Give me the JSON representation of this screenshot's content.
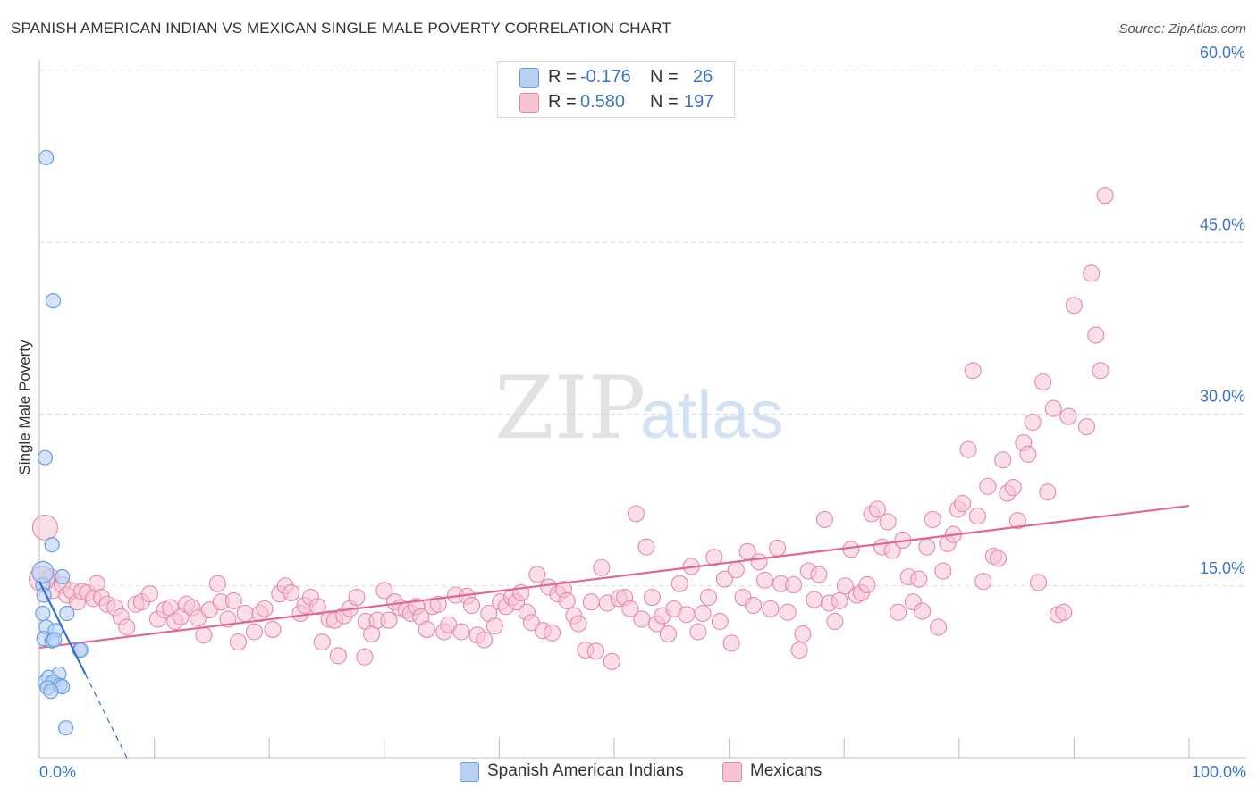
{
  "title": "SPANISH AMERICAN INDIAN VS MEXICAN SINGLE MALE POVERTY CORRELATION CHART",
  "source": "Source: ZipAtlas.com",
  "colors": {
    "blue_fill": "#b7d1f3",
    "blue_stroke": "#6a9ee0",
    "blue_line": "#2f6fd0",
    "pink_fill": "#f6c4d3",
    "pink_stroke": "#e58aa8",
    "pink_line": "#e3668f",
    "axis_text": "#3d74c6",
    "grid": "#dcdcdc"
  },
  "legend_top": {
    "rows": [
      {
        "r_label": "R =",
        "r_value": "-0.176",
        "n_label": "N =",
        "n_value": "26"
      },
      {
        "r_label": "R =",
        "r_value": "0.580",
        "n_label": "N =",
        "n_value": "197"
      }
    ]
  },
  "legend_bottom": {
    "items": [
      {
        "label": "Spanish American Indians"
      },
      {
        "label": "Mexicans"
      }
    ]
  },
  "chart_data": {
    "type": "scatter",
    "title": "SPANISH AMERICAN INDIAN VS MEXICAN SINGLE MALE POVERTY CORRELATION CHART",
    "xlabel": "",
    "ylabel": "Single Male Poverty",
    "xlim": [
      0,
      100
    ],
    "ylim": [
      0,
      60
    ],
    "x_tick_labels": [
      "0.0%",
      "100.0%"
    ],
    "y_ticks": [
      15,
      30,
      45,
      60
    ],
    "y_tick_labels": [
      "15.0%",
      "30.0%",
      "45.0%",
      "60.0%"
    ],
    "grid": "horizontal dashed",
    "watermark": {
      "zip": "ZIP",
      "atlas": "atlas"
    },
    "series": [
      {
        "name": "Spanish American Indians",
        "r": -0.176,
        "n": 26,
        "trend": {
          "x0": 0.0,
          "y0": 15.4,
          "x1": 4.0,
          "y1": 7.3,
          "dashed_to_x": 7.7
        },
        "points": [
          [
            0.6,
            52.4
          ],
          [
            1.2,
            39.9
          ],
          [
            0.5,
            26.2
          ],
          [
            1.1,
            18.6
          ],
          [
            2.0,
            15.8
          ],
          [
            0.3,
            15.1
          ],
          [
            0.4,
            14.2
          ],
          [
            0.3,
            12.6
          ],
          [
            2.4,
            12.6
          ],
          [
            0.6,
            11.4
          ],
          [
            1.4,
            11.1
          ],
          [
            0.4,
            10.4
          ],
          [
            1.1,
            10.2
          ],
          [
            1.3,
            10.3
          ],
          [
            3.5,
            9.4
          ],
          [
            3.6,
            9.4
          ],
          [
            1.7,
            7.3
          ],
          [
            0.8,
            7.0
          ],
          [
            0.5,
            6.6
          ],
          [
            1.2,
            6.6
          ],
          [
            1.8,
            6.3
          ],
          [
            2.0,
            6.2
          ],
          [
            0.7,
            6.1
          ],
          [
            1.0,
            5.8
          ],
          [
            2.3,
            2.6
          ],
          [
            0.3,
            16.2
          ]
        ]
      },
      {
        "name": "Mexicans",
        "r": 0.58,
        "n": 197,
        "trend": {
          "x0": 0.0,
          "y0": 9.6,
          "x1": 100.0,
          "y1": 22.0
        },
        "points": [
          [
            0.5,
            20.1
          ],
          [
            1.0,
            15.8
          ],
          [
            1.2,
            14.6
          ],
          [
            2.0,
            15.1
          ],
          [
            2.4,
            14.2
          ],
          [
            2.8,
            14.6
          ],
          [
            3.3,
            13.6
          ],
          [
            3.7,
            14.5
          ],
          [
            4.2,
            14.4
          ],
          [
            4.7,
            13.9
          ],
          [
            5.0,
            15.2
          ],
          [
            5.4,
            14.0
          ],
          [
            5.9,
            13.4
          ],
          [
            6.6,
            13.1
          ],
          [
            7.1,
            12.3
          ],
          [
            7.6,
            11.4
          ],
          [
            8.4,
            13.4
          ],
          [
            8.9,
            13.6
          ],
          [
            9.6,
            14.3
          ],
          [
            10.3,
            12.1
          ],
          [
            10.9,
            12.9
          ],
          [
            11.4,
            13.1
          ],
          [
            11.8,
            11.9
          ],
          [
            12.3,
            12.3
          ],
          [
            12.8,
            13.4
          ],
          [
            13.3,
            13.1
          ],
          [
            13.8,
            12.2
          ],
          [
            14.3,
            10.7
          ],
          [
            14.8,
            12.9
          ],
          [
            15.5,
            15.2
          ],
          [
            15.8,
            13.6
          ],
          [
            16.4,
            12.1
          ],
          [
            16.9,
            13.7
          ],
          [
            17.3,
            10.1
          ],
          [
            17.9,
            12.6
          ],
          [
            18.7,
            11.0
          ],
          [
            19.2,
            12.6
          ],
          [
            19.6,
            13.0
          ],
          [
            20.3,
            11.2
          ],
          [
            20.9,
            14.3
          ],
          [
            21.4,
            15.0
          ],
          [
            21.9,
            14.4
          ],
          [
            22.7,
            12.6
          ],
          [
            23.1,
            13.3
          ],
          [
            23.6,
            14.0
          ],
          [
            24.2,
            13.2
          ],
          [
            24.6,
            10.1
          ],
          [
            25.2,
            12.1
          ],
          [
            25.7,
            12.0
          ],
          [
            26.0,
            8.9
          ],
          [
            26.5,
            12.4
          ],
          [
            27.0,
            13.0
          ],
          [
            27.6,
            14.0
          ],
          [
            28.3,
            8.8
          ],
          [
            28.4,
            11.9
          ],
          [
            28.9,
            10.8
          ],
          [
            29.4,
            12.0
          ],
          [
            30.0,
            14.6
          ],
          [
            30.4,
            12.0
          ],
          [
            30.9,
            13.6
          ],
          [
            31.4,
            13.1
          ],
          [
            31.9,
            12.9
          ],
          [
            32.3,
            12.6
          ],
          [
            32.8,
            13.2
          ],
          [
            33.2,
            12.3
          ],
          [
            33.7,
            11.2
          ],
          [
            34.2,
            13.2
          ],
          [
            34.7,
            13.4
          ],
          [
            35.2,
            11.0
          ],
          [
            35.6,
            11.6
          ],
          [
            36.2,
            14.2
          ],
          [
            36.7,
            11.0
          ],
          [
            37.2,
            14.1
          ],
          [
            37.6,
            13.3
          ],
          [
            38.1,
            10.7
          ],
          [
            38.7,
            10.3
          ],
          [
            39.1,
            12.6
          ],
          [
            39.6,
            11.5
          ],
          [
            40.1,
            13.6
          ],
          [
            40.6,
            13.2
          ],
          [
            41.1,
            14.0
          ],
          [
            41.5,
            13.6
          ],
          [
            41.9,
            14.4
          ],
          [
            42.4,
            12.7
          ],
          [
            42.8,
            11.8
          ],
          [
            43.3,
            16.0
          ],
          [
            43.8,
            11.1
          ],
          [
            44.3,
            14.9
          ],
          [
            44.6,
            10.9
          ],
          [
            45.1,
            14.3
          ],
          [
            45.6,
            14.7
          ],
          [
            45.9,
            13.7
          ],
          [
            46.5,
            12.4
          ],
          [
            46.9,
            11.7
          ],
          [
            47.5,
            9.4
          ],
          [
            48.0,
            13.6
          ],
          [
            48.4,
            9.3
          ],
          [
            48.9,
            16.6
          ],
          [
            49.4,
            13.5
          ],
          [
            49.8,
            8.4
          ],
          [
            50.4,
            13.9
          ],
          [
            50.9,
            14.0
          ],
          [
            51.4,
            13.0
          ],
          [
            51.9,
            21.3
          ],
          [
            52.4,
            12.1
          ],
          [
            52.8,
            18.4
          ],
          [
            53.3,
            14.0
          ],
          [
            53.7,
            11.7
          ],
          [
            54.2,
            12.4
          ],
          [
            54.7,
            10.8
          ],
          [
            55.2,
            13.0
          ],
          [
            55.7,
            15.2
          ],
          [
            56.3,
            12.5
          ],
          [
            56.7,
            16.7
          ],
          [
            57.3,
            11.0
          ],
          [
            57.7,
            12.6
          ],
          [
            58.2,
            14.0
          ],
          [
            58.7,
            17.5
          ],
          [
            59.2,
            11.9
          ],
          [
            59.6,
            15.6
          ],
          [
            60.2,
            10.0
          ],
          [
            60.6,
            16.4
          ],
          [
            61.2,
            14.0
          ],
          [
            61.6,
            18.0
          ],
          [
            62.1,
            13.3
          ],
          [
            62.6,
            17.1
          ],
          [
            63.1,
            15.5
          ],
          [
            63.6,
            13.0
          ],
          [
            64.2,
            18.3
          ],
          [
            64.5,
            15.2
          ],
          [
            65.1,
            12.7
          ],
          [
            65.6,
            15.1
          ],
          [
            66.1,
            9.4
          ],
          [
            66.4,
            10.8
          ],
          [
            66.9,
            16.3
          ],
          [
            67.4,
            13.8
          ],
          [
            67.8,
            16.0
          ],
          [
            68.3,
            20.8
          ],
          [
            68.7,
            13.5
          ],
          [
            69.2,
            11.9
          ],
          [
            69.6,
            13.7
          ],
          [
            70.1,
            15.0
          ],
          [
            70.6,
            18.2
          ],
          [
            71.1,
            14.2
          ],
          [
            71.5,
            14.4
          ],
          [
            72.0,
            15.1
          ],
          [
            72.4,
            21.3
          ],
          [
            72.9,
            21.7
          ],
          [
            73.3,
            18.4
          ],
          [
            73.8,
            20.6
          ],
          [
            74.2,
            18.1
          ],
          [
            74.7,
            12.7
          ],
          [
            75.1,
            19.0
          ],
          [
            75.6,
            15.8
          ],
          [
            76.0,
            13.6
          ],
          [
            76.5,
            15.6
          ],
          [
            76.8,
            12.8
          ],
          [
            77.2,
            18.4
          ],
          [
            77.7,
            20.8
          ],
          [
            78.2,
            11.4
          ],
          [
            78.6,
            16.3
          ],
          [
            79.0,
            18.7
          ],
          [
            79.5,
            19.5
          ],
          [
            79.9,
            21.7
          ],
          [
            80.3,
            22.2
          ],
          [
            80.8,
            26.9
          ],
          [
            81.2,
            33.8
          ],
          [
            81.6,
            21.1
          ],
          [
            82.1,
            15.4
          ],
          [
            82.5,
            23.7
          ],
          [
            83.0,
            17.6
          ],
          [
            83.4,
            17.4
          ],
          [
            83.8,
            26.0
          ],
          [
            84.2,
            23.1
          ],
          [
            84.7,
            23.6
          ],
          [
            85.1,
            20.7
          ],
          [
            85.6,
            27.5
          ],
          [
            86.0,
            26.5
          ],
          [
            86.4,
            29.3
          ],
          [
            86.9,
            15.3
          ],
          [
            87.3,
            32.8
          ],
          [
            87.7,
            23.2
          ],
          [
            88.2,
            30.5
          ],
          [
            88.6,
            12.5
          ],
          [
            89.1,
            12.7
          ],
          [
            89.5,
            29.8
          ],
          [
            90.0,
            39.5
          ],
          [
            91.1,
            28.9
          ],
          [
            91.5,
            42.3
          ],
          [
            91.9,
            36.9
          ],
          [
            92.3,
            33.8
          ],
          [
            92.7,
            49.1
          ],
          [
            0.2,
            15.6
          ]
        ]
      }
    ]
  }
}
